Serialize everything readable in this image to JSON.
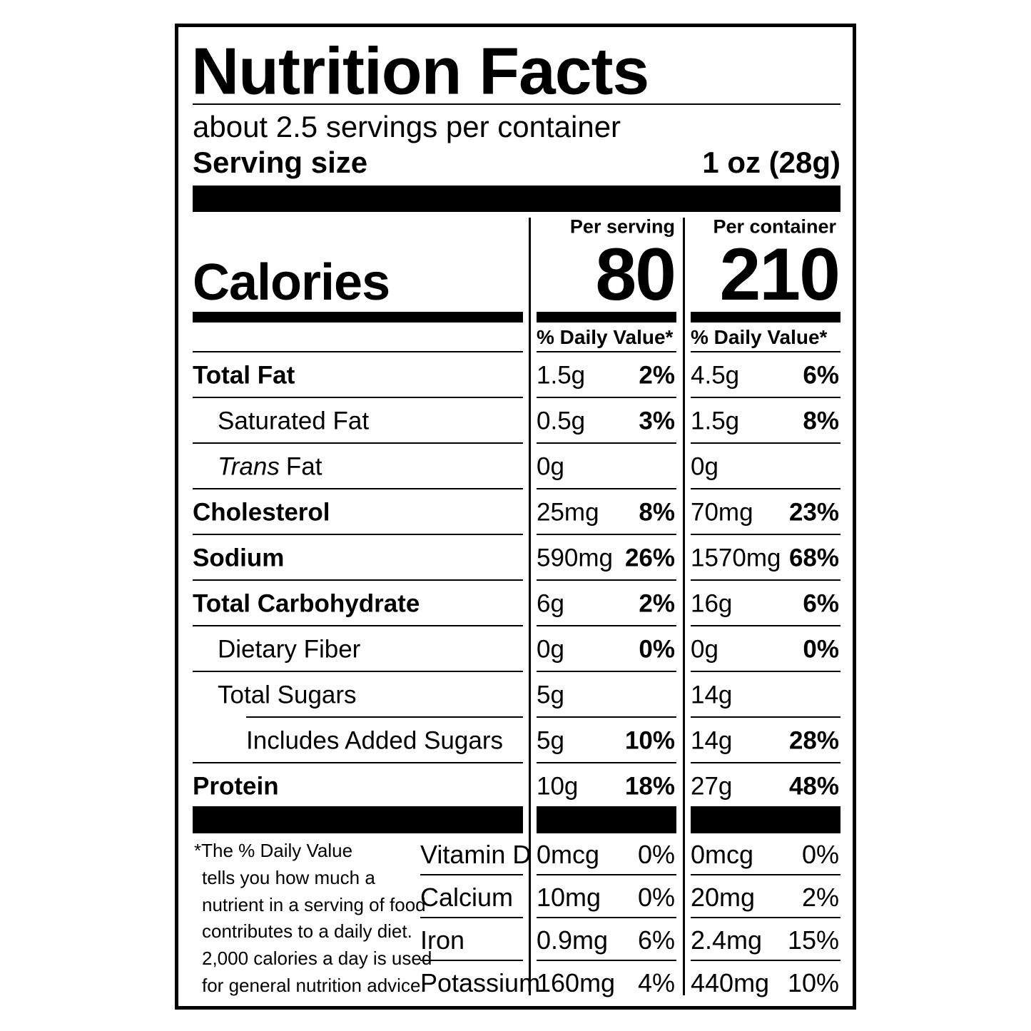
{
  "title": "Nutrition Facts",
  "servings_per_container": "about 2.5 servings per container",
  "serving_size": {
    "label": "Serving size",
    "value": "1 oz (28g)"
  },
  "calories": {
    "label": "Calories",
    "columns": [
      {
        "header": "Per serving",
        "value": 80,
        "dv_header": "% Daily Value*"
      },
      {
        "header": "Per container",
        "value": 210,
        "dv_header": "% Daily Value*"
      }
    ]
  },
  "nutrients": [
    {
      "name": "Total Fat",
      "per_serving": {
        "amount": "1.5g",
        "dv": "2%"
      },
      "per_container": {
        "amount": "4.5g",
        "dv": "6%"
      }
    },
    {
      "name": "Saturated Fat",
      "per_serving": {
        "amount": "0.5g",
        "dv": "3%"
      },
      "per_container": {
        "amount": "1.5g",
        "dv": "8%"
      }
    },
    {
      "prefix": "Trans",
      "name": "Fat",
      "per_serving": {
        "amount": "0g"
      },
      "per_container": {
        "amount": "0g"
      }
    },
    {
      "name": "Cholesterol",
      "per_serving": {
        "amount": "25mg",
        "dv": "8%"
      },
      "per_container": {
        "amount": "70mg",
        "dv": "23%"
      }
    },
    {
      "name": "Sodium",
      "per_serving": {
        "amount": "590mg",
        "dv": "26%"
      },
      "per_container": {
        "amount": "1570mg",
        "dv": "68%"
      }
    },
    {
      "name": "Total Carbohydrate",
      "per_serving": {
        "amount": "6g",
        "dv": "2%"
      },
      "per_container": {
        "amount": "16g",
        "dv": "6%"
      }
    },
    {
      "name": "Dietary Fiber",
      "per_serving": {
        "amount": "0g",
        "dv": "0%"
      },
      "per_container": {
        "amount": "0g",
        "dv": "0%"
      }
    },
    {
      "name": "Total Sugars",
      "per_serving": {
        "amount": "5g"
      },
      "per_container": {
        "amount": "14g"
      }
    },
    {
      "name": "Includes Added Sugars",
      "per_serving": {
        "amount": "5g",
        "dv": "10%"
      },
      "per_container": {
        "amount": "14g",
        "dv": "28%"
      }
    },
    {
      "name": "Protein",
      "per_serving": {
        "amount": "10g",
        "dv": "18%"
      },
      "per_container": {
        "amount": "27g",
        "dv": "48%"
      }
    }
  ],
  "vitamins": [
    {
      "name": "Vitamin D",
      "per_serving": {
        "amount": "0mcg",
        "dv": "0%"
      },
      "per_container": {
        "amount": "0mcg",
        "dv": "0%"
      }
    },
    {
      "name": "Calcium",
      "per_serving": {
        "amount": "10mg",
        "dv": "0%"
      },
      "per_container": {
        "amount": "20mg",
        "dv": "2%"
      }
    },
    {
      "name": "Iron",
      "per_serving": {
        "amount": "0.9mg",
        "dv": "6%"
      },
      "per_container": {
        "amount": "2.4mg",
        "dv": "15%"
      }
    },
    {
      "name": "Potassium",
      "per_serving": {
        "amount": "160mg",
        "dv": "4%"
      },
      "per_container": {
        "amount": "440mg",
        "dv": "10%"
      }
    }
  ],
  "footnote": [
    "*The % Daily Value",
    "tells you how much a",
    "nutrient in a serving of food",
    "contributes to a daily diet.",
    "2,000 calories a day is used",
    "for general nutrition advice."
  ]
}
